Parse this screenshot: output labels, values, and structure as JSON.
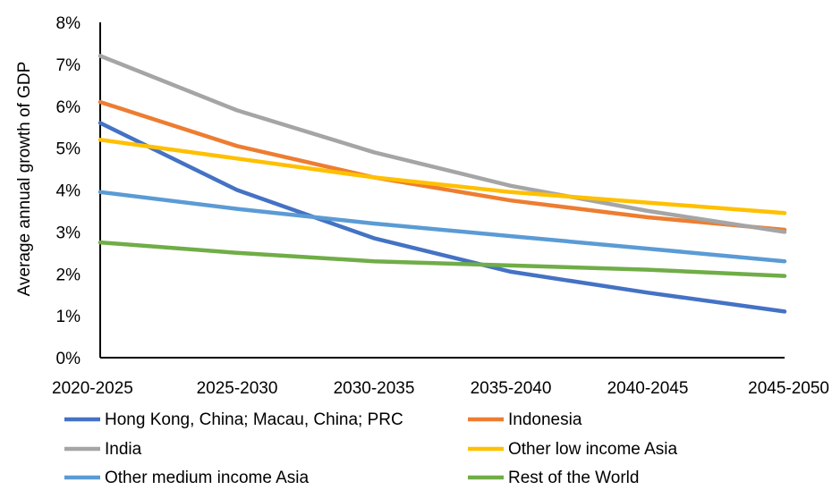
{
  "chart_data": {
    "type": "line",
    "title": "",
    "xlabel": "",
    "ylabel": "Average annual growth of GDP",
    "ylim": [
      0,
      8
    ],
    "y_ticks": [
      "0%",
      "1%",
      "2%",
      "3%",
      "4%",
      "5%",
      "6%",
      "7%",
      "8%"
    ],
    "categories": [
      "2020-2025",
      "2025-2030",
      "2030-2035",
      "2035-2040",
      "2040-2045",
      "2045-2050"
    ],
    "grid": false,
    "legend_position": "bottom",
    "series": [
      {
        "name": "Hong Kong, China; Macau, China; PRC",
        "color": "#4472C4",
        "values": [
          5.6,
          4.0,
          2.85,
          2.05,
          1.55,
          1.1
        ]
      },
      {
        "name": "Indonesia",
        "color": "#ED7D31",
        "values": [
          6.1,
          5.05,
          4.3,
          3.75,
          3.35,
          3.05
        ]
      },
      {
        "name": "India",
        "color": "#A5A5A5",
        "values": [
          7.2,
          5.9,
          4.9,
          4.1,
          3.5,
          3.0
        ]
      },
      {
        "name": "Other low income Asia",
        "color": "#FFC000",
        "values": [
          5.2,
          4.75,
          4.3,
          3.95,
          3.7,
          3.45
        ]
      },
      {
        "name": "Other medium income Asia",
        "color": "#5B9BD5",
        "values": [
          3.95,
          3.55,
          3.2,
          2.9,
          2.6,
          2.3
        ]
      },
      {
        "name": "Rest of the World",
        "color": "#70AD47",
        "values": [
          2.75,
          2.5,
          2.3,
          2.2,
          2.1,
          1.95
        ]
      }
    ]
  }
}
